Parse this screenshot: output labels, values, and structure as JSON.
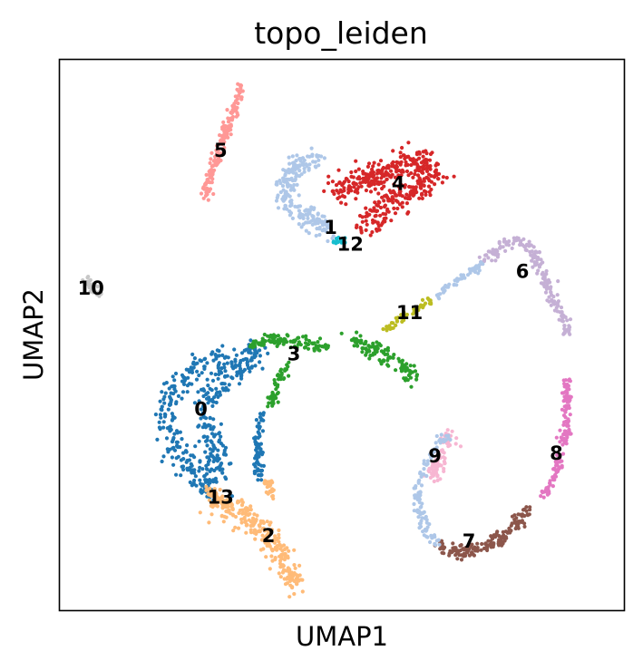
{
  "chart_data": {
    "type": "scatter",
    "title": "topo_leiden",
    "xlabel": "UMAP1",
    "ylabel": "UMAP2",
    "grid": false,
    "legend": "on data",
    "xlim": [
      0,
      100
    ],
    "ylim": [
      0,
      100
    ],
    "clusters": [
      {
        "name": "0",
        "color": "#1f77b4",
        "label_pos": [
          25,
          36.5
        ],
        "path": [
          [
            30,
            46
          ],
          [
            26,
            45
          ],
          [
            22,
            43
          ],
          [
            20,
            40
          ],
          [
            19,
            37
          ],
          [
            19,
            34
          ],
          [
            20,
            31
          ],
          [
            22,
            27
          ],
          [
            24,
            24
          ],
          [
            27,
            21
          ],
          [
            28,
            23
          ],
          [
            28,
            27
          ],
          [
            27,
            31
          ],
          [
            26,
            34
          ],
          [
            26,
            37
          ],
          [
            27,
            40
          ],
          [
            30,
            43
          ],
          [
            35,
            46
          ],
          [
            34,
            48
          ]
        ],
        "spread": 2.0,
        "n": 460
      },
      {
        "name": "0",
        "color": "#1f77b4",
        "label_pos": null,
        "path": [
          [
            36,
            36
          ],
          [
            35,
            32
          ],
          [
            35,
            27
          ],
          [
            35.5,
            24
          ]
        ],
        "spread": 0.7,
        "n": 70
      },
      {
        "name": "1",
        "color": "#aec7e8",
        "label_pos": [
          48,
          69.5
        ],
        "path": [
          [
            46,
            82
          ],
          [
            42,
            81
          ],
          [
            40,
            78
          ],
          [
            40,
            75
          ],
          [
            42,
            73
          ],
          [
            45,
            71
          ],
          [
            47,
            69
          ]
        ],
        "spread": 1.7,
        "n": 220
      },
      {
        "name": "2",
        "color": "#ffbb78",
        "label_pos": [
          37,
          13.5
        ],
        "path": [
          [
            27,
            20
          ],
          [
            31,
            18
          ],
          [
            34,
            16
          ],
          [
            37,
            13
          ],
          [
            39,
            10
          ],
          [
            41,
            6
          ],
          [
            42,
            4.5
          ]
        ],
        "spread": 1.9,
        "n": 260
      },
      {
        "name": "2",
        "color": "#ffbb78",
        "label_pos": null,
        "path": [
          [
            36.5,
            23.5
          ],
          [
            37.5,
            22
          ],
          [
            37.5,
            20.5
          ]
        ],
        "spread": 0.6,
        "n": 30
      },
      {
        "name": "3",
        "color": "#2ca02c",
        "label_pos": [
          41.5,
          46.5
        ],
        "path": [
          [
            34,
            48
          ],
          [
            38,
            49
          ],
          [
            42,
            49
          ],
          [
            45,
            48
          ],
          [
            47.5,
            47.5
          ]
        ],
        "spread": 1.0,
        "n": 110
      },
      {
        "name": "3",
        "color": "#2ca02c",
        "label_pos": null,
        "path": [
          [
            40,
            45
          ],
          [
            39,
            42
          ],
          [
            38,
            39
          ],
          [
            37,
            37
          ]
        ],
        "spread": 0.8,
        "n": 50
      },
      {
        "name": "3",
        "color": "#2ca02c",
        "label_pos": null,
        "path": [
          [
            52,
            49
          ],
          [
            55,
            47.5
          ],
          [
            58,
            46
          ],
          [
            61,
            44
          ],
          [
            62.5,
            42.5
          ]
        ],
        "spread": 1.5,
        "n": 110
      },
      {
        "name": "4",
        "color": "#d62728",
        "label_pos": [
          60,
          77.5
        ],
        "path": [
          [
            49,
            76
          ],
          [
            53,
            78
          ],
          [
            57,
            79
          ],
          [
            61,
            81
          ],
          [
            64,
            82
          ],
          [
            66,
            79
          ],
          [
            63,
            76
          ],
          [
            59,
            74
          ],
          [
            56,
            72
          ],
          [
            54,
            70
          ]
        ],
        "spread": 2.3,
        "n": 420
      },
      {
        "name": "5",
        "color": "#ff9896",
        "label_pos": [
          28.5,
          83.5
        ],
        "path": [
          [
            32,
            95
          ],
          [
            31,
            91
          ],
          [
            29.5,
            87
          ],
          [
            28,
            83
          ],
          [
            26.5,
            78.5
          ],
          [
            25.5,
            75
          ]
        ],
        "spread": 0.8,
        "n": 170
      },
      {
        "name": "6",
        "color": "#c5b0d5",
        "label_pos": [
          82,
          61.5
        ],
        "path": [
          [
            75,
            63
          ],
          [
            77.5,
            65.5
          ],
          [
            80,
            67
          ],
          [
            82,
            67
          ],
          [
            84,
            65
          ],
          [
            85,
            62
          ],
          [
            87,
            58
          ],
          [
            89,
            54
          ],
          [
            90,
            50
          ]
        ],
        "spread": 0.9,
        "n": 180
      },
      {
        "name": "7",
        "color": "#8c564b",
        "label_pos": [
          72.5,
          12.5
        ],
        "path": [
          [
            67,
            12
          ],
          [
            69,
            11
          ],
          [
            72,
            10.5
          ],
          [
            75,
            11.5
          ],
          [
            78,
            13
          ],
          [
            81,
            15.5
          ],
          [
            83,
            18.5
          ]
        ],
        "spread": 1.0,
        "n": 170
      },
      {
        "name": "8",
        "color": "#e377c2",
        "label_pos": [
          88,
          28.5
        ],
        "path": [
          [
            90,
            42
          ],
          [
            90,
            37
          ],
          [
            89.5,
            32
          ],
          [
            88.5,
            27
          ],
          [
            87,
            23
          ],
          [
            85,
            20
          ]
        ],
        "spread": 0.8,
        "n": 140
      },
      {
        "name": "9",
        "color": "#f7b6d2",
        "label_pos": [
          66.5,
          28
        ],
        "path": [
          [
            66,
            24
          ],
          [
            67,
            27
          ],
          [
            68.5,
            30
          ],
          [
            69.5,
            31.5
          ]
        ],
        "spread": 1.2,
        "n": 80
      },
      {
        "name": "9",
        "color": "#aec7e8",
        "label_pos": null,
        "path": [
          [
            69,
            32
          ],
          [
            67,
            30
          ],
          [
            65,
            27
          ],
          [
            63.5,
            23
          ],
          [
            63.5,
            18
          ],
          [
            65,
            14
          ],
          [
            67,
            12
          ]
        ],
        "spread": 0.9,
        "n": 110
      },
      {
        "name": "10",
        "color": "#c7c7c7",
        "label_pos": [
          5.5,
          58.5
        ],
        "path": [
          [
            5,
            60
          ],
          [
            5.5,
            58.5
          ],
          [
            7,
            57
          ]
        ],
        "spread": 0.6,
        "n": 45
      },
      {
        "name": "11",
        "color": "#bcbd22",
        "label_pos": [
          62,
          54
        ],
        "path": [
          [
            58,
            51
          ],
          [
            60.5,
            53
          ],
          [
            63,
            54.5
          ],
          [
            66,
            56.5
          ]
        ],
        "spread": 0.5,
        "n": 50
      },
      {
        "name": "11",
        "color": "#aec7e8",
        "label_pos": null,
        "path": [
          [
            66,
            56.5
          ],
          [
            69,
            59
          ],
          [
            72,
            61
          ],
          [
            75,
            63
          ]
        ],
        "spread": 0.6,
        "n": 50
      },
      {
        "name": "12",
        "color": "#17becf",
        "label_pos": [
          51.5,
          66.5
        ],
        "path": [
          [
            48.5,
            67
          ],
          [
            50.5,
            67
          ]
        ],
        "spread": 0.5,
        "n": 20
      },
      {
        "name": "13",
        "color": "#ffbb78",
        "label_pos": [
          28.5,
          20.5
        ],
        "path": [
          [
            26,
            22
          ],
          [
            28,
            20.5
          ],
          [
            30,
            19
          ]
        ],
        "spread": 0.8,
        "n": 40
      }
    ]
  }
}
